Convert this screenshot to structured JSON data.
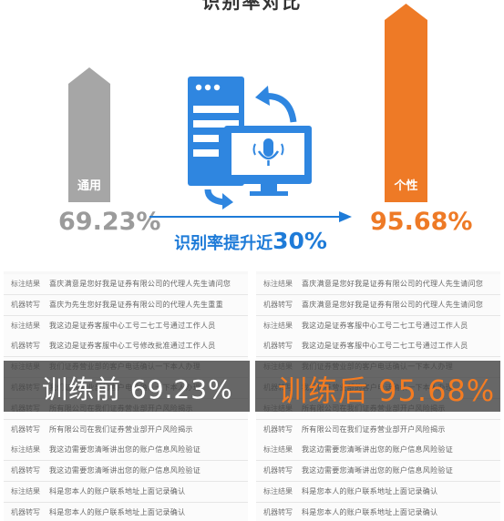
{
  "heading": "识别率对比",
  "left": {
    "label": "通用",
    "rate": "69.23%",
    "color": "#9b9b9b"
  },
  "right": {
    "label": "个性",
    "rate": "95.68%",
    "color": "#ee7a26"
  },
  "improve": {
    "prefix": "识别率提升近",
    "value": "30%",
    "color": "#1e7bd8"
  },
  "before": {
    "title": "训练前 69.23%"
  },
  "after": {
    "title": "训练后 95.68%"
  },
  "row_labels": {
    "mark": "标注结果",
    "machine": "机器转写"
  },
  "before_rows": [
    [
      "标注结果",
      "喜庆满意是您好我是证券有限公司的代理人先生请问您"
    ],
    [
      "机器转写",
      "喜庆为先生您好我是证券有限公司的代理人先生重重"
    ],
    [
      "标注结果",
      "我这边是证券客服中心工号二七工号通过工作人员"
    ],
    [
      "机器转写",
      "我这边是证券客服中心工号修改批准通过工作人员"
    ],
    [
      "标注结果",
      "我们证券营业部的客户电话确认一下本人办理"
    ],
    [
      "机器转写",
      "我们证券营业部的客户电话确认一下本人办理"
    ],
    [
      "机器转写",
      "所有限公司在我们证券营业部开户风险揭示"
    ],
    [
      "机器转写",
      "所有限公司在我们证券营业部开户风险揭示"
    ],
    [
      "标注结果",
      "我这边需要您清晰讲出您的账户信息风险验证"
    ],
    [
      "机器转写",
      "我这边需要您清晰讲出您的账户信息风险验证"
    ],
    [
      "标注结果",
      "科是您本人的账户联系地址上面记录确认"
    ],
    [
      "机器转写",
      "科是您本人的账户联系地址上面记录确认"
    ]
  ],
  "after_rows": [
    [
      "标注结果",
      "喜庆满意是您好我是证券有限公司的代理人先生请问您"
    ],
    [
      "机器转写",
      "喜庆满意是您好我是证券有限公司的代理人先生请问您"
    ],
    [
      "标注结果",
      "我这边是证券客服中心工号二七工号通过工作人员"
    ],
    [
      "机器转写",
      "我这边是证券客服中心工号二七工号通过工作人员"
    ],
    [
      "标注结果",
      "我们证券营业部的客户电话确认一下本人办理"
    ],
    [
      "机器转写",
      "我们证券营业部的客户电话确认一下本人办理"
    ],
    [
      "标注结果",
      "所有限公司在我们证券营业部开户风险揭示"
    ],
    [
      "机器转写",
      "所有限公司在我们证券营业部开户风险揭示"
    ],
    [
      "标注结果",
      "我这边需要您清晰讲出您的账户信息风险验证"
    ],
    [
      "机器转写",
      "我这边需要您清晰讲出您的账户信息风险验证"
    ],
    [
      "标注结果",
      "科是您本人的账户联系地址上面记录确认"
    ],
    [
      "机器转写",
      "科是您本人的账户联系地址上面记录确认"
    ]
  ]
}
